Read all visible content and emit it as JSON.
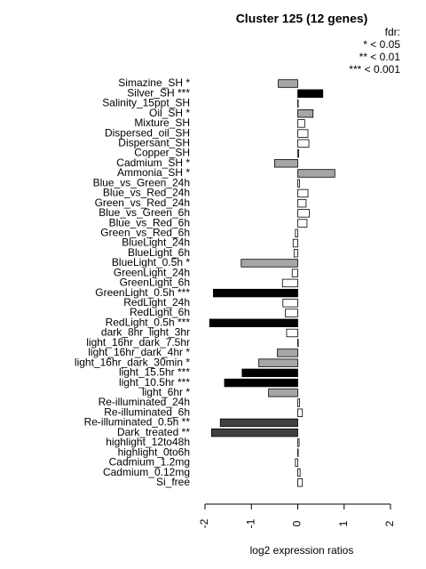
{
  "chart_data": {
    "type": "barh",
    "title": "Cluster 125 (12 genes)",
    "x_label": "log2 expression ratios",
    "legend_title": "fdr:",
    "legend_entries": [
      "* < 0.05",
      "** < 0.01",
      "*** < 0.001"
    ],
    "categories": [
      "Simazine_SH *",
      "Silver_SH ***",
      "Salinity_15ppt_SH",
      "Oil_SH *",
      "Mixture_SH",
      "Dispersed_oil_SH",
      "Dispersant_SH",
      "Copper_SH",
      "Cadmium_SH *",
      "Ammonia_SH *",
      "Blue_vs_Green_24h",
      "Blue_vs_Red_24h",
      "Green_vs_Red_24h",
      "Blue_vs_Green_6h",
      "Blue_vs_Red_6h",
      "Green_vs_Red_6h",
      "BlueLight_24h",
      "BlueLight_6h",
      "BlueLight_0.5h *",
      "GreenLight_24h",
      "GreenLight_6h",
      "GreenLight_0.5h ***",
      "RedLight_24h",
      "RedLight_6h",
      "RedLight_0.5h ***",
      "dark_8hr_light_3hr",
      "light_16hr_dark_7.5hr",
      "light_16hr_dark_4hr *",
      "light_16hr_dark_30min *",
      "light_15.5hr ***",
      "light_10.5hr ***",
      "light_6hr *",
      "Re-illuminated_24h",
      "Re-illuminated_6h",
      "Re-illuminated_0.5h **",
      "Dark_treated **",
      "highlight_12to48h",
      "highlight_0to6h",
      "Cadmium_1.2mg",
      "Cadmium_0.12mg",
      "Si_free"
    ],
    "values": [
      -0.42,
      0.54,
      0.01,
      0.33,
      0.15,
      0.22,
      0.24,
      0.02,
      -0.5,
      0.8,
      0.04,
      0.22,
      0.18,
      0.25,
      0.2,
      -0.05,
      -0.1,
      -0.08,
      -1.22,
      -0.12,
      -0.33,
      -1.82,
      -0.32,
      -0.27,
      -1.9,
      -0.24,
      0.01,
      -0.44,
      -0.84,
      -1.2,
      -1.58,
      -0.63,
      0.04,
      0.1,
      -1.67,
      -1.86,
      0.03,
      0.01,
      -0.05,
      0.05,
      0.1
    ],
    "colors": [
      "#a6a6a6",
      "#000000",
      "#ffffff",
      "#a6a6a6",
      "#ffffff",
      "#ffffff",
      "#ffffff",
      "#ffffff",
      "#a6a6a6",
      "#a6a6a6",
      "#ffffff",
      "#ffffff",
      "#ffffff",
      "#ffffff",
      "#ffffff",
      "#ffffff",
      "#ffffff",
      "#ffffff",
      "#a6a6a6",
      "#ffffff",
      "#ffffff",
      "#000000",
      "#ffffff",
      "#ffffff",
      "#000000",
      "#ffffff",
      "#ffffff",
      "#a6a6a6",
      "#a6a6a6",
      "#000000",
      "#000000",
      "#a6a6a6",
      "#ffffff",
      "#ffffff",
      "#404040",
      "#404040",
      "#ffffff",
      "#ffffff",
      "#ffffff",
      "#ffffff",
      "#ffffff"
    ],
    "xlim": [
      -2,
      2
    ],
    "xticks": [
      -2,
      -1,
      0,
      1,
      2
    ]
  }
}
